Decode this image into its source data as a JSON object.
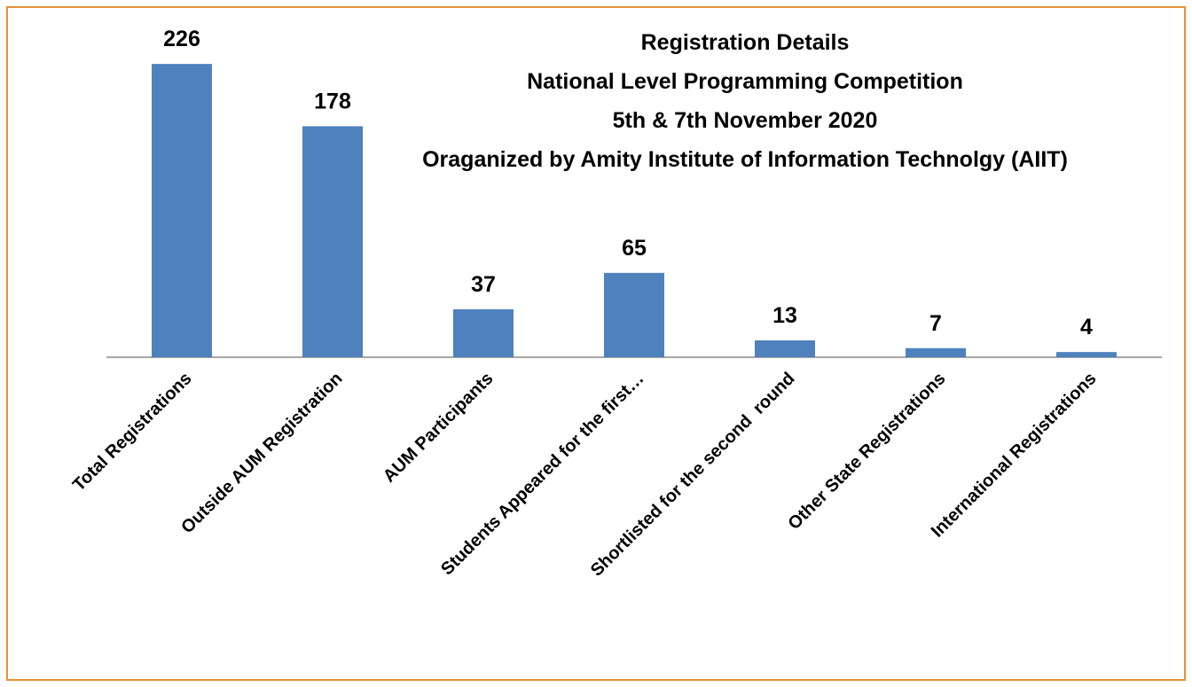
{
  "chart_data": {
    "type": "bar",
    "title": [
      "Registration Details",
      "National Level Programming Competition",
      "5th & 7th November 2020",
      "Oraganized by Amity Institute of Information Technolgy (AIIT)"
    ],
    "categories": [
      "Total Registrations",
      "Outside AUM Registration",
      "AUM Participants",
      "Students Appeared for the first…",
      "Shortlisted for the second  round",
      "Other State Registrations",
      "International Registrations"
    ],
    "values": [
      226,
      178,
      37,
      65,
      13,
      7,
      4
    ],
    "color": "#4f81bd",
    "ylim": [
      0,
      250
    ]
  }
}
